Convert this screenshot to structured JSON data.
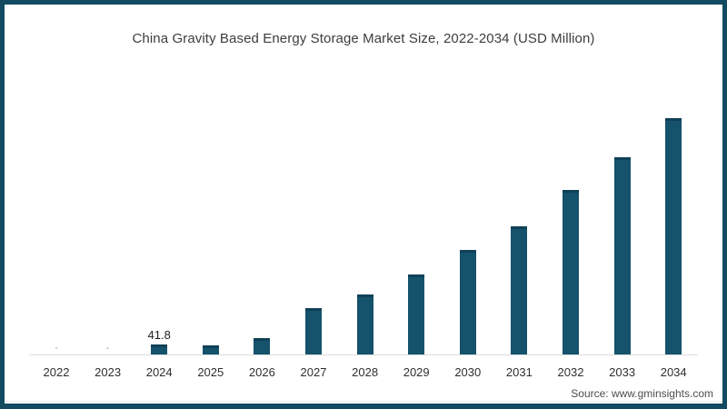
{
  "title": "China Gravity Based Energy Storage Market Size, 2022-2034 (USD Million)",
  "source": "Source: www.gminsights.com",
  "frame": {
    "border_color": "#114a61",
    "background_color": "#ffffff"
  },
  "chart_data": {
    "type": "bar",
    "title": "China Gravity Based Energy Storage Market Size, 2022-2034 (USD Million)",
    "xlabel": "",
    "ylabel": "",
    "categories": [
      "2022",
      "2023",
      "2024",
      "2025",
      "2026",
      "2027",
      "2028",
      "2029",
      "2030",
      "2031",
      "2032",
      "2033",
      "2034"
    ],
    "values": [
      0,
      0,
      41.8,
      38,
      67,
      189,
      248,
      327,
      429,
      526,
      677,
      811,
      971
    ],
    "data_labels": [
      "-",
      "-",
      "41.8",
      "",
      "",
      "",
      "",
      "",
      "",
      "",
      "",
      "",
      ""
    ],
    "ylim": [
      0,
      1000
    ],
    "grid": false,
    "legend": false,
    "bar_color": "#15526b",
    "bar_top_edge_color": "#0f4156",
    "axis_line_color": "#dcdcdc",
    "value_label_color": "#1f1f1f",
    "dash_label_color": "#909090",
    "tick_label_color": "#2f2f2f"
  }
}
